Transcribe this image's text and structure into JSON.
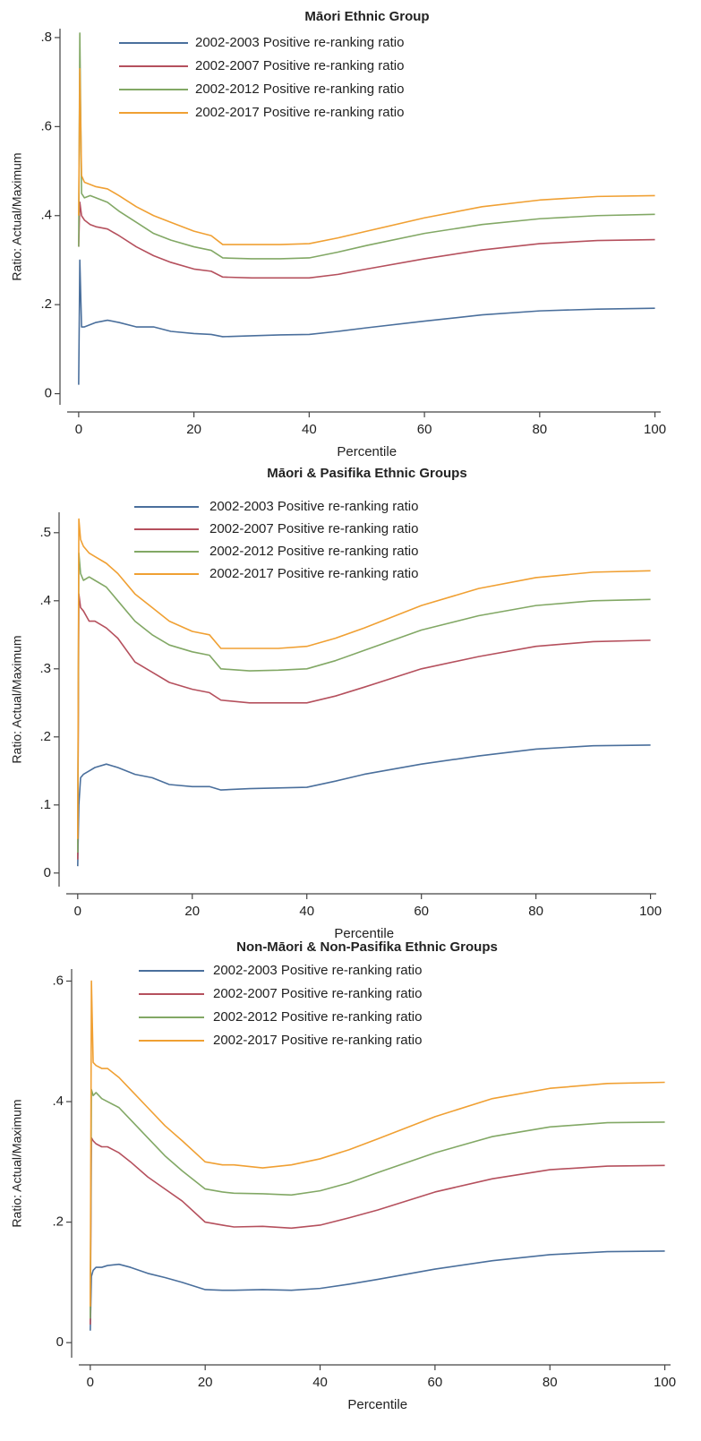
{
  "chart_data": [
    {
      "type": "line",
      "title": "Māori Ethnic Group",
      "x_label": "Percentile",
      "y_label": "Ratio: Actual/Maximum",
      "x": [
        0,
        0.2,
        0.5,
        1,
        2,
        3,
        5,
        7,
        10,
        13,
        16,
        20,
        23,
        25,
        30,
        35,
        40,
        45,
        50,
        60,
        70,
        80,
        90,
        100
      ],
      "xlim": [
        -2,
        101
      ],
      "xticks": [
        0,
        20,
        40,
        60,
        80,
        100
      ],
      "ylim": [
        -0.025,
        0.82
      ],
      "yticks": [
        0,
        {
          "value": 0.2,
          "label": ".2"
        },
        {
          "value": 0.4,
          "label": ".4"
        },
        {
          "value": 0.6,
          "label": ".6"
        },
        {
          "value": 0.8,
          "label": ".8"
        }
      ],
      "series": [
        {
          "name": "2002-2003 Positive re-ranking ratio",
          "color": "#4a6f9c",
          "values": [
            0.02,
            0.3,
            0.15,
            0.15,
            0.155,
            0.16,
            0.165,
            0.16,
            0.15,
            0.15,
            0.14,
            0.135,
            0.133,
            0.128,
            0.13,
            0.132,
            0.133,
            0.14,
            0.148,
            0.163,
            0.177,
            0.186,
            0.19,
            0.192
          ]
        },
        {
          "name": "2002-2007 Positive re-ranking ratio",
          "color": "#b5505d",
          "values": [
            0.33,
            0.43,
            0.4,
            0.39,
            0.38,
            0.375,
            0.37,
            0.355,
            0.33,
            0.31,
            0.295,
            0.28,
            0.275,
            0.262,
            0.26,
            0.26,
            0.26,
            0.268,
            0.28,
            0.303,
            0.323,
            0.337,
            0.344,
            0.346
          ]
        },
        {
          "name": "2002-2012 Positive re-ranking ratio",
          "color": "#82a865",
          "values": [
            0.33,
            0.81,
            0.45,
            0.44,
            0.445,
            0.44,
            0.43,
            0.41,
            0.385,
            0.36,
            0.345,
            0.33,
            0.322,
            0.305,
            0.303,
            0.303,
            0.305,
            0.318,
            0.333,
            0.36,
            0.38,
            0.393,
            0.4,
            0.403
          ]
        },
        {
          "name": "2002-2017 Positive re-ranking ratio",
          "color": "#f0a033",
          "values": [
            0.4,
            0.73,
            0.49,
            0.475,
            0.47,
            0.465,
            0.46,
            0.445,
            0.42,
            0.4,
            0.385,
            0.365,
            0.355,
            0.335,
            0.335,
            0.335,
            0.337,
            0.35,
            0.365,
            0.395,
            0.42,
            0.435,
            0.443,
            0.445
          ]
        }
      ]
    },
    {
      "type": "line",
      "title": "Māori & Pasifika Ethnic Groups",
      "x_label": "Percentile",
      "y_label": "Ratio: Actual/Maximum",
      "x": [
        0,
        0.2,
        0.5,
        1,
        2,
        3,
        5,
        7,
        10,
        13,
        16,
        20,
        23,
        25,
        30,
        35,
        40,
        45,
        50,
        60,
        70,
        80,
        90,
        100
      ],
      "xlim": [
        -2,
        101
      ],
      "xticks": [
        0,
        20,
        40,
        60,
        80,
        100
      ],
      "ylim": [
        -0.02,
        0.53
      ],
      "yticks": [
        0,
        {
          "value": 0.1,
          "label": ".1"
        },
        {
          "value": 0.2,
          "label": ".2"
        },
        {
          "value": 0.3,
          "label": ".3"
        },
        {
          "value": 0.4,
          "label": ".4"
        },
        {
          "value": 0.5,
          "label": ".5"
        }
      ],
      "series": [
        {
          "name": "2002-2003 Positive re-ranking ratio",
          "color": "#4a6f9c",
          "values": [
            0.01,
            0.1,
            0.14,
            0.145,
            0.15,
            0.155,
            0.16,
            0.155,
            0.145,
            0.14,
            0.13,
            0.127,
            0.127,
            0.122,
            0.124,
            0.125,
            0.126,
            0.135,
            0.145,
            0.16,
            0.172,
            0.182,
            0.187,
            0.188
          ]
        },
        {
          "name": "2002-2007 Positive re-ranking ratio",
          "color": "#b5505d",
          "values": [
            0.02,
            0.41,
            0.39,
            0.385,
            0.37,
            0.37,
            0.36,
            0.345,
            0.31,
            0.295,
            0.28,
            0.27,
            0.265,
            0.254,
            0.25,
            0.25,
            0.25,
            0.26,
            0.273,
            0.3,
            0.318,
            0.333,
            0.34,
            0.342
          ]
        },
        {
          "name": "2002-2012 Positive re-ranking ratio",
          "color": "#82a865",
          "values": [
            0.03,
            0.47,
            0.44,
            0.43,
            0.435,
            0.43,
            0.42,
            0.4,
            0.37,
            0.35,
            0.335,
            0.325,
            0.32,
            0.3,
            0.297,
            0.298,
            0.3,
            0.312,
            0.327,
            0.357,
            0.378,
            0.393,
            0.4,
            0.402
          ]
        },
        {
          "name": "2002-2017 Positive re-ranking ratio",
          "color": "#f0a033",
          "values": [
            0.05,
            0.52,
            0.49,
            0.48,
            0.47,
            0.465,
            0.455,
            0.44,
            0.41,
            0.39,
            0.37,
            0.355,
            0.35,
            0.33,
            0.33,
            0.33,
            0.333,
            0.345,
            0.36,
            0.393,
            0.418,
            0.434,
            0.442,
            0.444
          ]
        }
      ]
    },
    {
      "type": "line",
      "title": "Non-Māori & Non-Pasifika Ethnic Groups",
      "x_label": "Percentile",
      "y_label": "Ratio: Actual/Maximum",
      "x": [
        0,
        0.2,
        0.5,
        1,
        2,
        3,
        5,
        7,
        10,
        13,
        16,
        20,
        23,
        25,
        30,
        35,
        40,
        45,
        50,
        60,
        70,
        80,
        90,
        100
      ],
      "xlim": [
        -2,
        101
      ],
      "xticks": [
        0,
        20,
        40,
        60,
        80,
        100
      ],
      "ylim": [
        -0.025,
        0.62
      ],
      "yticks": [
        0,
        {
          "value": 0.2,
          "label": ".2"
        },
        {
          "value": 0.4,
          "label": ".4"
        },
        {
          "value": 0.6,
          "label": ".6"
        }
      ],
      "series": [
        {
          "name": "2002-2003 Positive re-ranking ratio",
          "color": "#4a6f9c",
          "values": [
            0.02,
            0.11,
            0.12,
            0.125,
            0.125,
            0.128,
            0.13,
            0.125,
            0.115,
            0.108,
            0.1,
            0.088,
            0.087,
            0.087,
            0.088,
            0.087,
            0.09,
            0.097,
            0.105,
            0.122,
            0.136,
            0.146,
            0.151,
            0.152
          ]
        },
        {
          "name": "2002-2007 Positive re-ranking ratio",
          "color": "#b5505d",
          "values": [
            0.03,
            0.34,
            0.335,
            0.33,
            0.325,
            0.325,
            0.315,
            0.3,
            0.275,
            0.255,
            0.235,
            0.2,
            0.195,
            0.192,
            0.193,
            0.19,
            0.195,
            0.207,
            0.22,
            0.25,
            0.272,
            0.287,
            0.293,
            0.294
          ]
        },
        {
          "name": "2002-2012 Positive re-ranking ratio",
          "color": "#82a865",
          "values": [
            0.04,
            0.42,
            0.41,
            0.415,
            0.405,
            0.4,
            0.39,
            0.37,
            0.34,
            0.31,
            0.285,
            0.255,
            0.25,
            0.248,
            0.247,
            0.245,
            0.252,
            0.265,
            0.282,
            0.315,
            0.342,
            0.358,
            0.365,
            0.366
          ]
        },
        {
          "name": "2002-2017 Positive re-ranking ratio",
          "color": "#f0a033",
          "values": [
            0.06,
            0.6,
            0.465,
            0.46,
            0.455,
            0.455,
            0.44,
            0.42,
            0.39,
            0.36,
            0.335,
            0.3,
            0.295,
            0.295,
            0.29,
            0.295,
            0.305,
            0.32,
            0.338,
            0.375,
            0.405,
            0.422,
            0.43,
            0.432
          ]
        }
      ]
    }
  ]
}
